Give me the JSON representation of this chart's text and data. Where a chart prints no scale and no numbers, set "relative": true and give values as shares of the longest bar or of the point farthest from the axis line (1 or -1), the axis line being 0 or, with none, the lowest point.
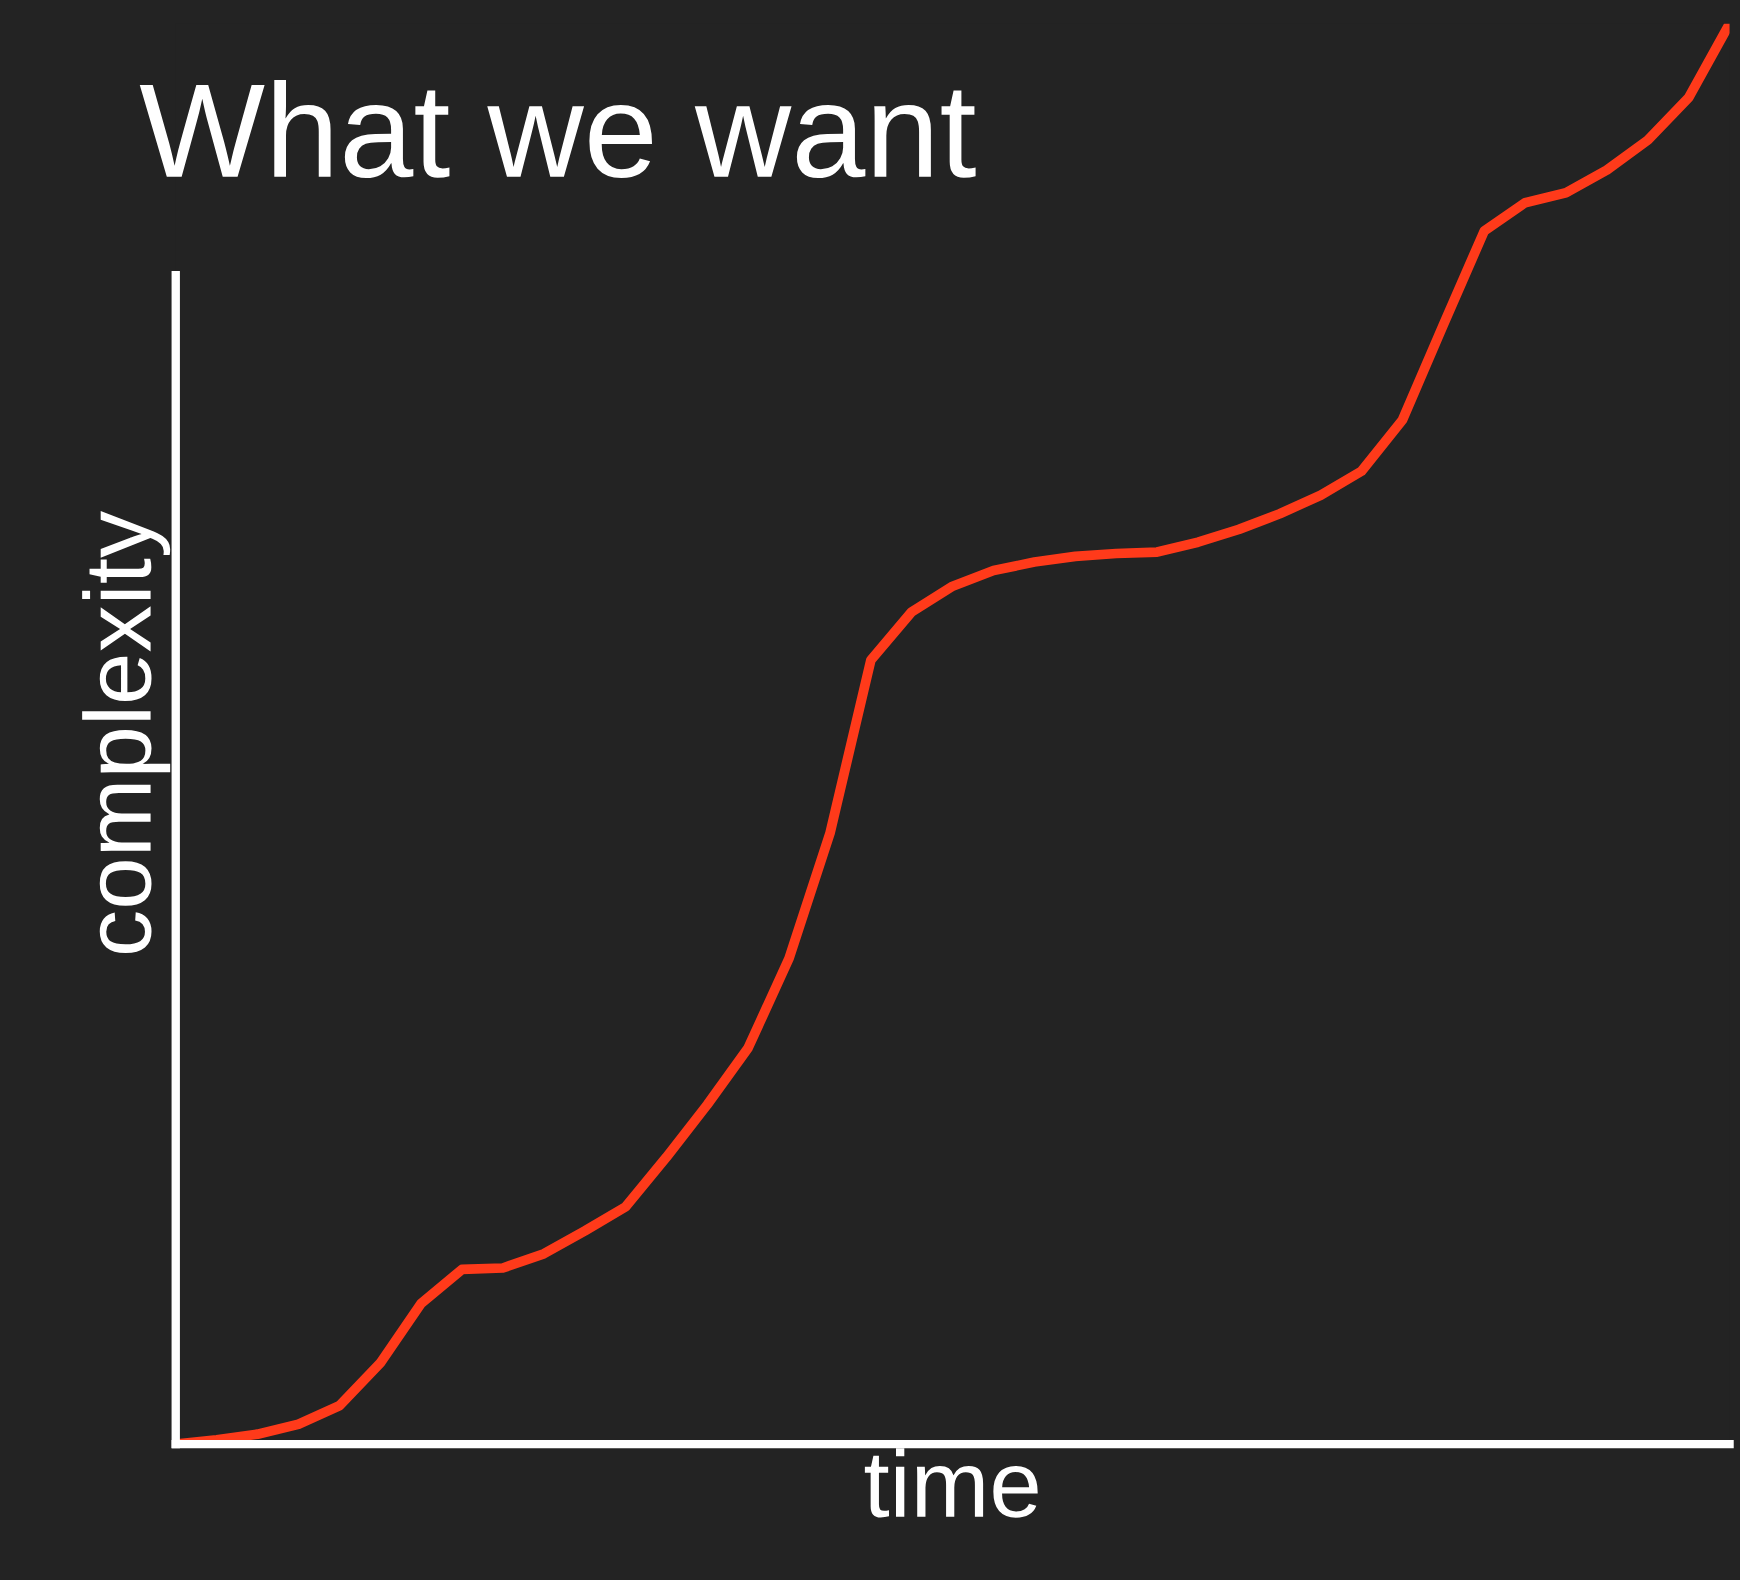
{
  "chart_data": {
    "type": "line",
    "title": "What we want",
    "xlabel": "time",
    "ylabel": "complexity",
    "relative": true,
    "grid": false,
    "legend": false,
    "marker": "none",
    "line_style": "solid",
    "categories": [
      null,
      null,
      null,
      null,
      null,
      null,
      null,
      null,
      null,
      null,
      null,
      null,
      null,
      null,
      null,
      null,
      null,
      null,
      null,
      null,
      null,
      null,
      null,
      null,
      null,
      null,
      null,
      null,
      null,
      null,
      null,
      null,
      null,
      null,
      null,
      null,
      null,
      null,
      null
    ],
    "series": [
      {
        "color": "#ff3a1a",
        "values": [
          0,
          0.003,
          0.007,
          0.014,
          0.027,
          0.057,
          0.099,
          0.123,
          0.124,
          0.134,
          0.15,
          0.167,
          0.202,
          0.239,
          0.279,
          0.342,
          0.43,
          0.552,
          0.586,
          0.604,
          0.615,
          0.621,
          0.625,
          0.627,
          0.628,
          0.635,
          0.644,
          0.655,
          0.668,
          0.685,
          0.721,
          0.788,
          0.854,
          0.874,
          0.881,
          0.897,
          0.918,
          0.948,
          1
        ]
      }
    ]
  }
}
